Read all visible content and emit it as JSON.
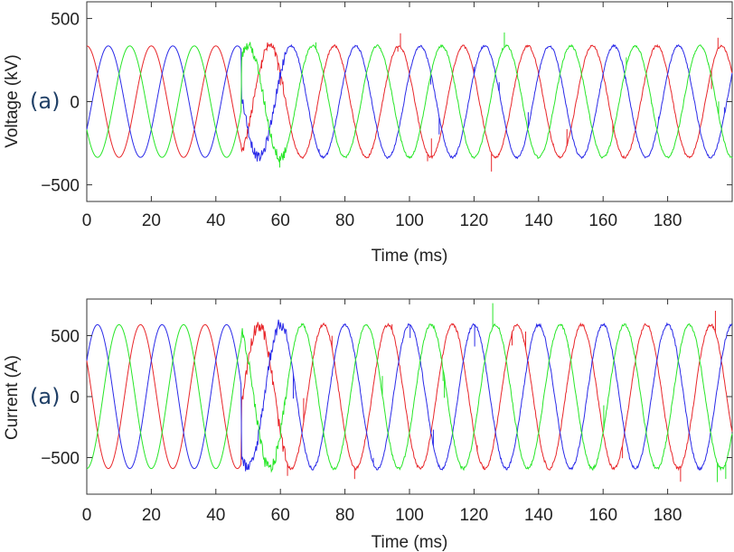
{
  "chart_data": [
    {
      "type": "line",
      "panel_tag": "(a)",
      "ylabel": "Voltage (kV)",
      "xlabel": "Time (ms)",
      "xlim": [
        0,
        200
      ],
      "ylim": [
        -600,
        600
      ],
      "xticks": [
        0,
        20,
        40,
        60,
        80,
        100,
        120,
        140,
        160,
        180
      ],
      "xtick_labels": [
        "0",
        "20",
        "40",
        "60",
        "80",
        "100",
        "120",
        "140",
        "160",
        "180"
      ],
      "yticks": [
        -500,
        0,
        500
      ],
      "ytick_labels": [
        "−500",
        "0",
        "500"
      ],
      "grid": false,
      "waveform": {
        "amplitude": 335,
        "frequency_hz": 50,
        "disturbance_start_ms": 48,
        "disturbance_end_ms": 62,
        "phase_shift_deg": 60
      },
      "series": [
        {
          "color": "#e8262a",
          "phase_deg": 90
        },
        {
          "color": "#2a2ae8",
          "phase_deg": -30
        },
        {
          "color": "#28e628",
          "phase_deg": 210
        }
      ]
    },
    {
      "type": "line",
      "panel_tag": "(a)",
      "ylabel": "Current (A)",
      "xlabel": "Time (ms)",
      "xlim": [
        0,
        200
      ],
      "ylim": [
        -800,
        800
      ],
      "xticks": [
        0,
        20,
        40,
        60,
        80,
        100,
        120,
        140,
        160,
        180
      ],
      "xtick_labels": [
        "0",
        "20",
        "40",
        "60",
        "80",
        "100",
        "120",
        "140",
        "160",
        "180"
      ],
      "yticks": [
        -500,
        0,
        500
      ],
      "ytick_labels": [
        "−500",
        "0",
        "500"
      ],
      "grid": false,
      "waveform": {
        "amplitude": 590,
        "frequency_hz": 50,
        "disturbance_start_ms": 48,
        "disturbance_end_ms": 62,
        "phase_shift_deg": 60
      },
      "series": [
        {
          "color": "#e8262a",
          "phase_deg": 150
        },
        {
          "color": "#2a2ae8",
          "phase_deg": 30
        },
        {
          "color": "#28e628",
          "phase_deg": 270
        }
      ]
    }
  ]
}
